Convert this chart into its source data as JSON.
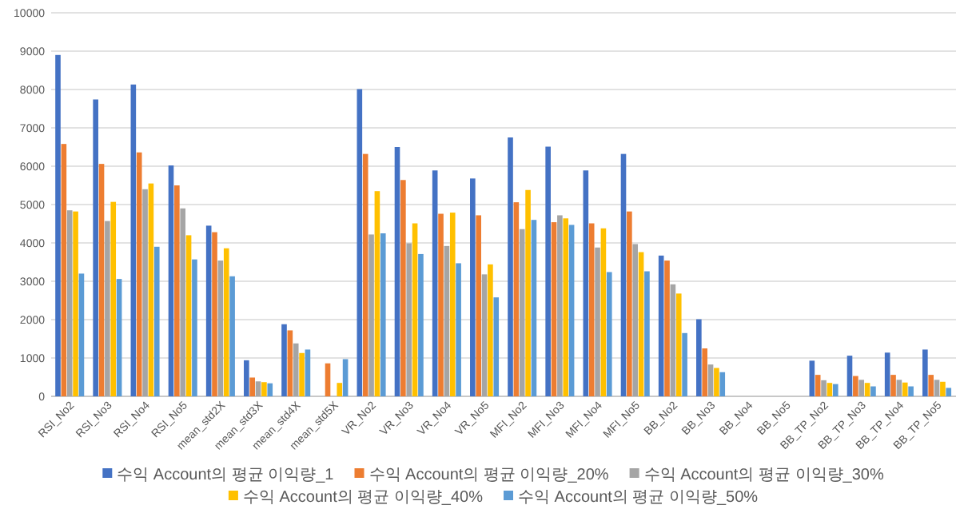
{
  "chart_data": {
    "type": "bar",
    "categories": [
      "RSI_No2",
      "RSI_No3",
      "RSI_No4",
      "RSI_No5",
      "mean_std2X",
      "mean_std3X",
      "mean_std4X",
      "mean_std5X",
      "VR_No2",
      "VR_No3",
      "VR_No4",
      "VR_No5",
      "MFI_No2",
      "MFI_No3",
      "MFI_No4",
      "MFI_No5",
      "BB_No2",
      "BB_No3",
      "BB_No4",
      "BB_No5",
      "BB_TP_No2",
      "BB_TP_No3",
      "BB_TP_No4",
      "BB_TP_No5"
    ],
    "series": [
      {
        "name": "수익 Account의 평균 이익량_1",
        "color": "#4472c4",
        "values": [
          8900,
          7740,
          8130,
          6020,
          4450,
          940,
          1880,
          null,
          8010,
          6500,
          5890,
          5680,
          6750,
          6510,
          5890,
          6320,
          3670,
          2010,
          null,
          null,
          930,
          1060,
          1140,
          1220
        ]
      },
      {
        "name": "수익 Account의 평균 이익량_20%",
        "color": "#ed7d31",
        "values": [
          6580,
          6060,
          6360,
          5500,
          4280,
          490,
          1720,
          860,
          6320,
          5640,
          4760,
          4720,
          5060,
          4540,
          4510,
          4820,
          3540,
          1250,
          null,
          null,
          560,
          530,
          560,
          560
        ]
      },
      {
        "name": "수익 Account의 평균 이익량_30%",
        "color": "#a5a5a5",
        "values": [
          4850,
          4570,
          5400,
          4900,
          3540,
          390,
          1380,
          null,
          4220,
          3990,
          3920,
          3180,
          4360,
          4720,
          3880,
          3970,
          2920,
          830,
          null,
          null,
          420,
          430,
          430,
          430
        ]
      },
      {
        "name": "수익 Account의 평균 이익량_40%",
        "color": "#ffc000",
        "values": [
          4820,
          5070,
          5550,
          4200,
          3860,
          370,
          1130,
          350,
          5350,
          4510,
          4790,
          3440,
          5380,
          4640,
          4380,
          3760,
          2680,
          740,
          null,
          null,
          350,
          350,
          360,
          380
        ]
      },
      {
        "name": "수익 Account의 평균 이익량_50%",
        "color": "#5b9bd5",
        "values": [
          3200,
          3060,
          3900,
          3570,
          3130,
          340,
          1220,
          970,
          4250,
          3710,
          3470,
          2580,
          4600,
          4470,
          3240,
          3260,
          1650,
          630,
          null,
          null,
          320,
          260,
          260,
          220
        ]
      }
    ],
    "ylim": [
      0,
      10000
    ],
    "yticks": [
      0,
      1000,
      2000,
      3000,
      4000,
      5000,
      6000,
      7000,
      8000,
      9000,
      10000
    ],
    "grid": "y",
    "legend": "bottom"
  }
}
